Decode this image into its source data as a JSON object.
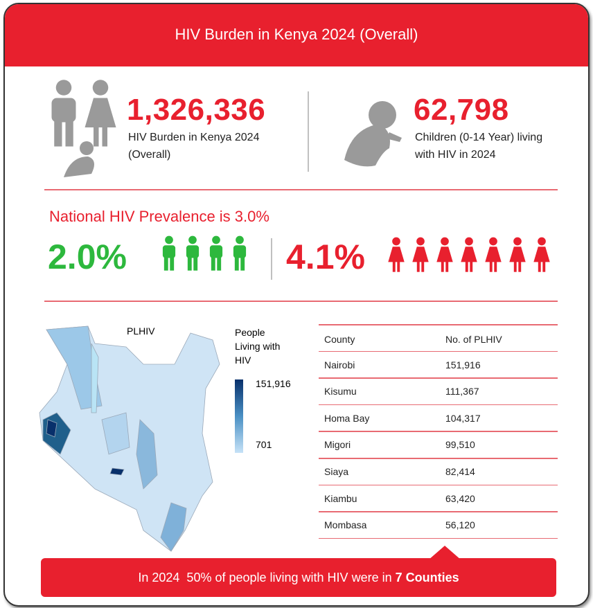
{
  "header": {
    "title": "HIV Burden in Kenya 2024 (Overall)"
  },
  "stats": [
    {
      "value": "1,326,336",
      "label_lines": [
        "HIV Burden in Kenya 2024",
        "(Overall)"
      ]
    },
    {
      "value": "62,798",
      "label_lines": [
        "Children (0-14 Year) living",
        "with HIV in 2024"
      ]
    }
  ],
  "prevalence": {
    "title": "National HIV Prevalence is 3.0%",
    "male": "2.0%",
    "female": "4.1%"
  },
  "map": {
    "title": "PLHIV",
    "legend_title_lines": [
      "People",
      "Living with",
      "HIV"
    ],
    "legend_max": "151,916",
    "legend_min": "701"
  },
  "table": {
    "header": [
      "County",
      "No. of PLHIV"
    ],
    "rows": [
      [
        "Nairobi",
        "151,916"
      ],
      [
        "Kisumu",
        "111,367"
      ],
      [
        "Homa Bay",
        "104,317"
      ],
      [
        "Migori",
        "99,510"
      ],
      [
        "Siaya",
        "82,414"
      ],
      [
        "Kiambu",
        "63,420"
      ],
      [
        "Mombasa",
        "56,120"
      ]
    ]
  },
  "footer": {
    "text": "In 2024  50% of people living with HIV were in ",
    "bold": "7 Counties"
  }
}
